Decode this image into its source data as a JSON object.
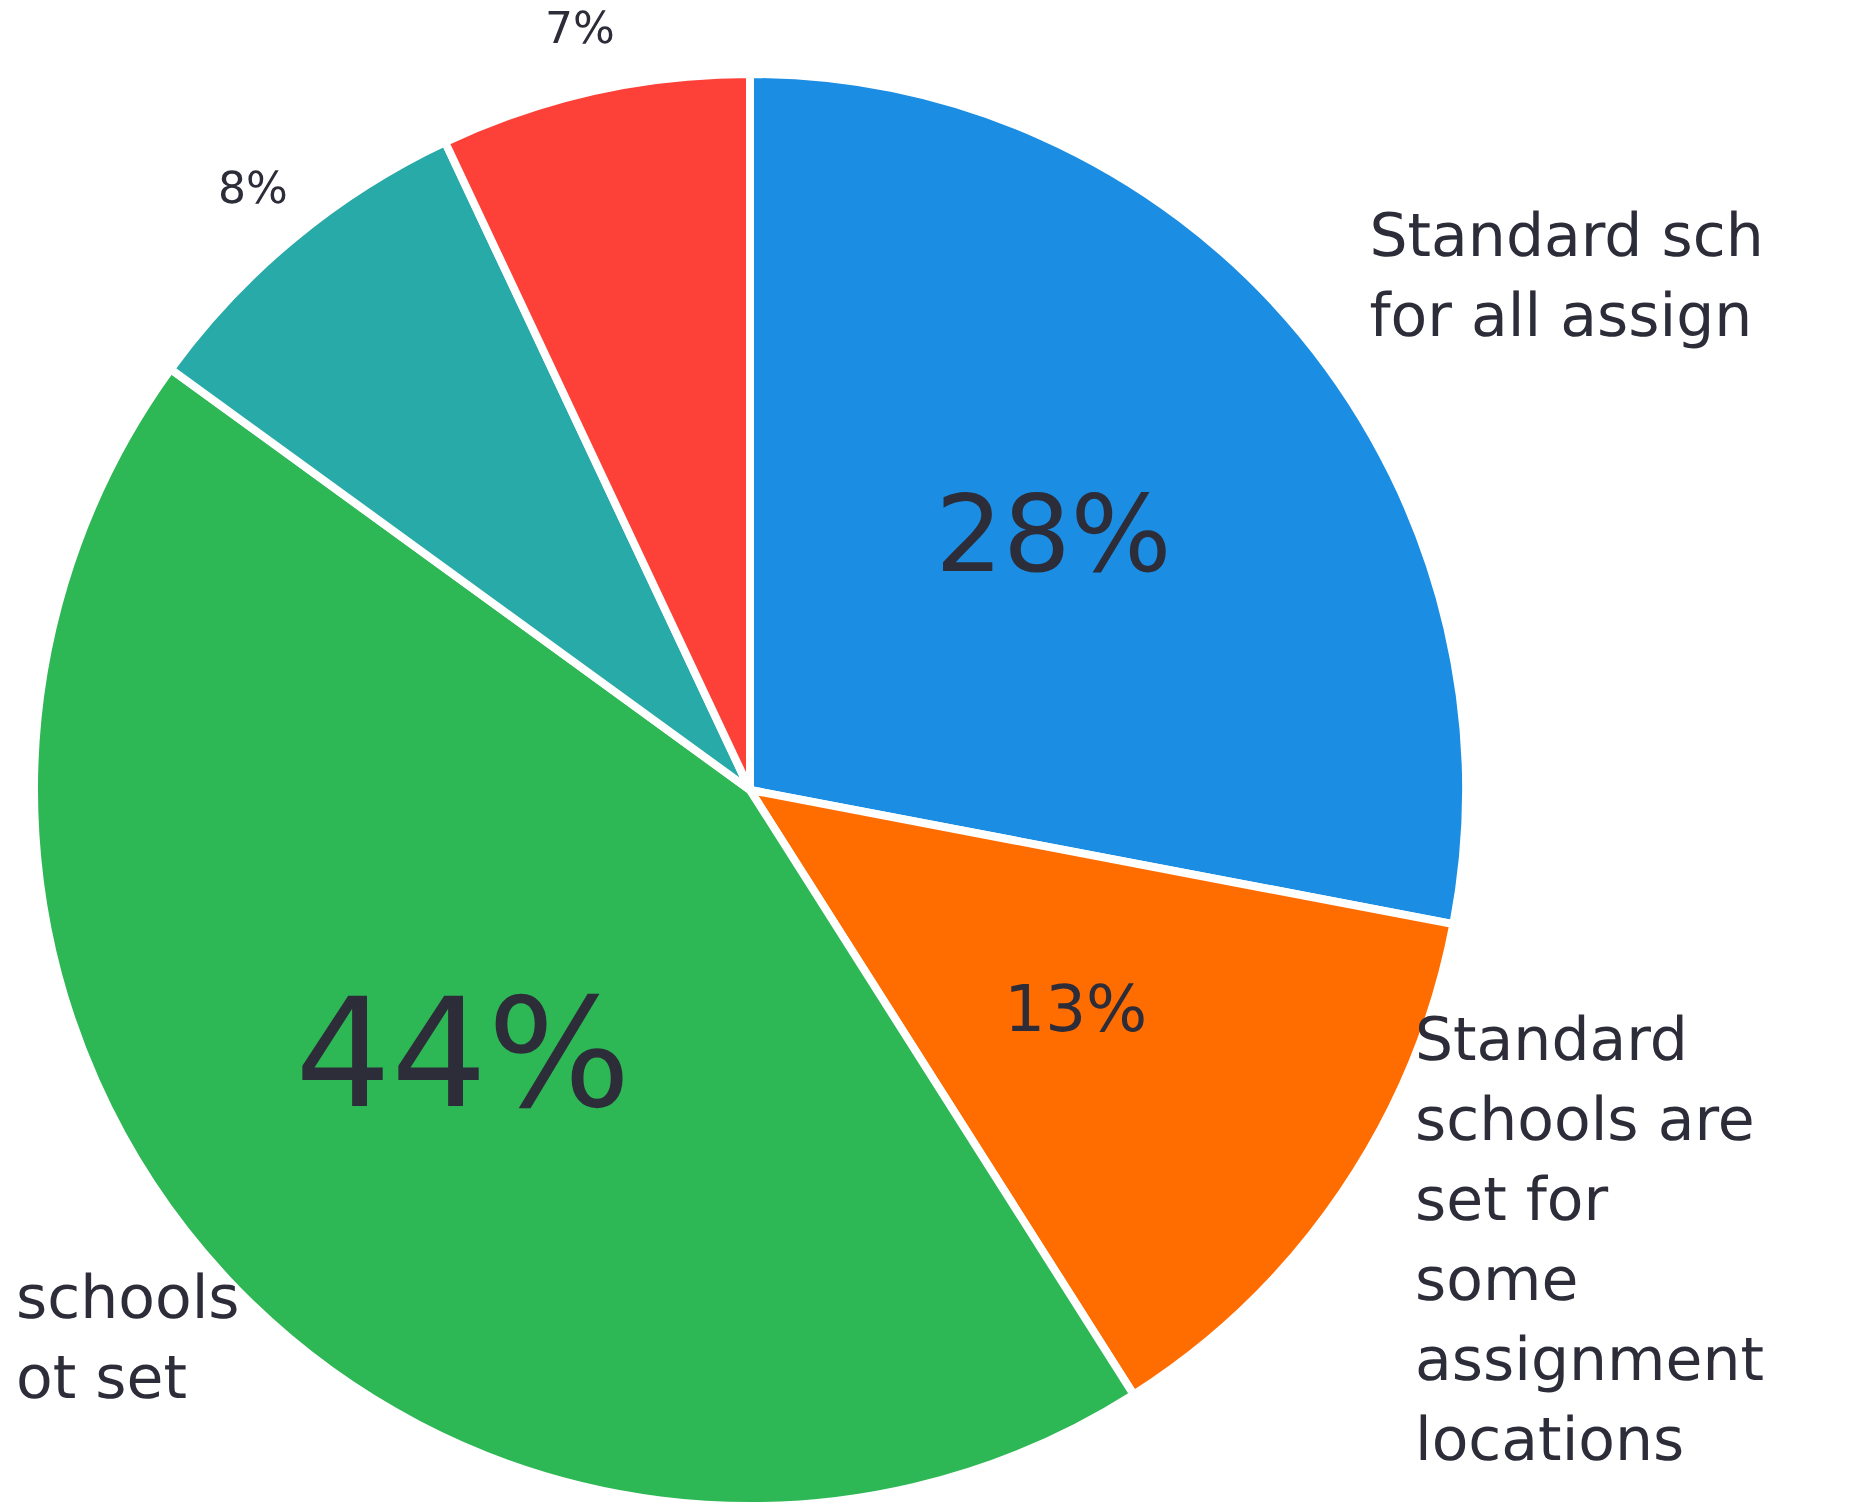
{
  "chart_data": {
    "type": "pie",
    "categories": [
      "Standard sch\nfor all assign",
      "Standard\nschools are\nset for\nsome\nassignment\nlocations",
      "schools\not set",
      null,
      null
    ],
    "values": [
      28,
      13,
      44,
      8,
      7
    ],
    "colors": [
      "#1b8de2",
      "#ff6c00",
      "#2eb755",
      "#28aba8",
      "#fd4038"
    ],
    "value_labels": [
      "28%",
      "13%",
      "44%",
      "8%",
      "7%"
    ]
  }
}
